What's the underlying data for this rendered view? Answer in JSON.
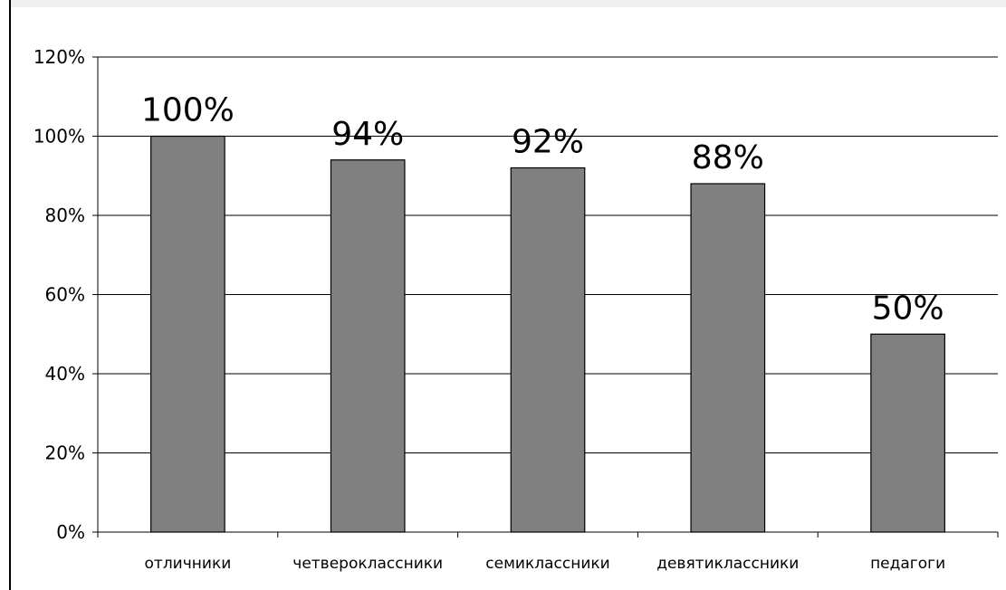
{
  "chart_data": {
    "type": "bar",
    "categories": [
      "отличники",
      "четвероклассники",
      "семиклассники",
      "девятиклассники",
      "педагоги"
    ],
    "values": [
      100,
      94,
      92,
      88,
      50
    ],
    "data_labels": [
      "100%",
      "94%",
      "92%",
      "88%",
      "50%"
    ],
    "yticks": [
      "0%",
      "20%",
      "40%",
      "60%",
      "80%",
      "100%",
      "120%"
    ],
    "ylim": [
      0,
      120
    ],
    "grid": true,
    "legend": "none",
    "bar_color": "#808080",
    "title": "",
    "xlabel": "",
    "ylabel": ""
  }
}
